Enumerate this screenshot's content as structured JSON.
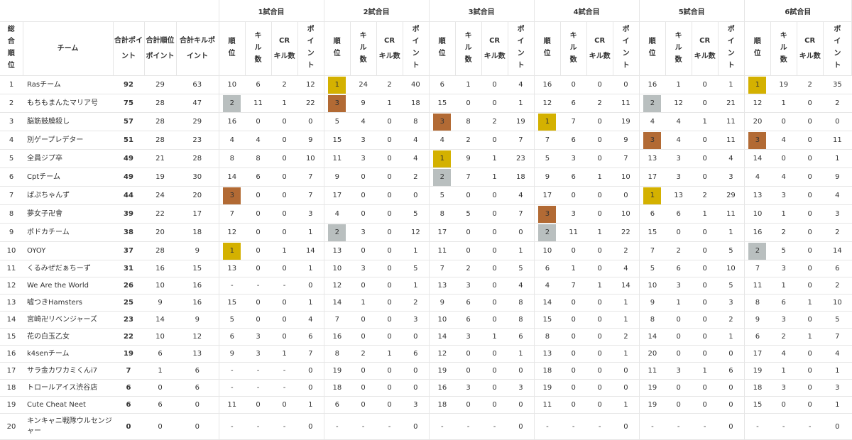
{
  "header": {
    "overall_rank": "総合順位",
    "team": "チーム",
    "total_points": "合計ポイント",
    "total_rank_points": "合計順位ポイント",
    "total_kill_points": "合計キルポイント",
    "game_labels": [
      "1試合目",
      "2試合目",
      "3試合目",
      "4試合目",
      "5試合目",
      "6試合目"
    ],
    "sub_rank": "順位",
    "sub_kills": "キル数",
    "sub_cr_prefix": "CR",
    "sub_cr_rest": "キル数",
    "sub_points": "ポイント"
  },
  "highlight_colors": {
    "1": "#d4b100",
    "2": "#b9bfbf",
    "3": "#b26a34"
  },
  "rows": [
    {
      "rank": "1",
      "team": "Rasチーム",
      "total": "92",
      "rankpts": "29",
      "killpts": "63",
      "games": [
        [
          "10",
          "6",
          "2",
          "12"
        ],
        [
          "1",
          "24",
          "2",
          "40"
        ],
        [
          "6",
          "1",
          "0",
          "4"
        ],
        [
          "16",
          "0",
          "0",
          "0"
        ],
        [
          "16",
          "1",
          "0",
          "1"
        ],
        [
          "1",
          "19",
          "2",
          "35"
        ]
      ]
    },
    {
      "rank": "2",
      "team": "もちもまんたマリア号",
      "total": "75",
      "rankpts": "28",
      "killpts": "47",
      "games": [
        [
          "2",
          "11",
          "1",
          "22"
        ],
        [
          "3",
          "9",
          "1",
          "18"
        ],
        [
          "15",
          "0",
          "0",
          "1"
        ],
        [
          "12",
          "6",
          "2",
          "11"
        ],
        [
          "2",
          "12",
          "0",
          "21"
        ],
        [
          "12",
          "1",
          "0",
          "2"
        ]
      ]
    },
    {
      "rank": "3",
      "team": "脳筋鼓膜殺し",
      "total": "57",
      "rankpts": "28",
      "killpts": "29",
      "games": [
        [
          "16",
          "0",
          "0",
          "0"
        ],
        [
          "5",
          "4",
          "0",
          "8"
        ],
        [
          "3",
          "8",
          "2",
          "19"
        ],
        [
          "1",
          "7",
          "0",
          "19"
        ],
        [
          "4",
          "4",
          "1",
          "11"
        ],
        [
          "20",
          "0",
          "0",
          "0"
        ]
      ]
    },
    {
      "rank": "4",
      "team": "別ゲープレデター",
      "total": "51",
      "rankpts": "28",
      "killpts": "23",
      "games": [
        [
          "4",
          "4",
          "0",
          "9"
        ],
        [
          "15",
          "3",
          "0",
          "4"
        ],
        [
          "4",
          "2",
          "0",
          "7"
        ],
        [
          "7",
          "6",
          "0",
          "9"
        ],
        [
          "3",
          "4",
          "0",
          "11"
        ],
        [
          "3",
          "4",
          "0",
          "11"
        ]
      ]
    },
    {
      "rank": "5",
      "team": "全員ジプ卒",
      "total": "49",
      "rankpts": "21",
      "killpts": "28",
      "games": [
        [
          "8",
          "8",
          "0",
          "10"
        ],
        [
          "11",
          "3",
          "0",
          "4"
        ],
        [
          "1",
          "9",
          "1",
          "23"
        ],
        [
          "5",
          "3",
          "0",
          "7"
        ],
        [
          "13",
          "3",
          "0",
          "4"
        ],
        [
          "14",
          "0",
          "0",
          "1"
        ]
      ]
    },
    {
      "rank": "6",
      "team": "Cptチーム",
      "total": "49",
      "rankpts": "19",
      "killpts": "30",
      "games": [
        [
          "14",
          "6",
          "0",
          "7"
        ],
        [
          "9",
          "0",
          "0",
          "2"
        ],
        [
          "2",
          "7",
          "1",
          "18"
        ],
        [
          "9",
          "6",
          "1",
          "10"
        ],
        [
          "17",
          "3",
          "0",
          "3"
        ],
        [
          "4",
          "4",
          "0",
          "9"
        ]
      ]
    },
    {
      "rank": "7",
      "team": "ぱぷちゃんず",
      "total": "44",
      "rankpts": "24",
      "killpts": "20",
      "games": [
        [
          "3",
          "0",
          "0",
          "7"
        ],
        [
          "17",
          "0",
          "0",
          "0"
        ],
        [
          "5",
          "0",
          "0",
          "4"
        ],
        [
          "17",
          "0",
          "0",
          "0"
        ],
        [
          "1",
          "13",
          "2",
          "29"
        ],
        [
          "13",
          "3",
          "0",
          "4"
        ]
      ]
    },
    {
      "rank": "8",
      "team": "夢女子卍會",
      "total": "39",
      "rankpts": "22",
      "killpts": "17",
      "games": [
        [
          "7",
          "0",
          "0",
          "3"
        ],
        [
          "4",
          "0",
          "0",
          "5"
        ],
        [
          "8",
          "5",
          "0",
          "7"
        ],
        [
          "3",
          "3",
          "0",
          "10"
        ],
        [
          "6",
          "6",
          "1",
          "11"
        ],
        [
          "10",
          "1",
          "0",
          "3"
        ]
      ]
    },
    {
      "rank": "9",
      "team": "ポドカチーム",
      "total": "38",
      "rankpts": "20",
      "killpts": "18",
      "games": [
        [
          "12",
          "0",
          "0",
          "1"
        ],
        [
          "2",
          "3",
          "0",
          "12"
        ],
        [
          "17",
          "0",
          "0",
          "0"
        ],
        [
          "2",
          "11",
          "1",
          "22"
        ],
        [
          "15",
          "0",
          "0",
          "1"
        ],
        [
          "16",
          "2",
          "0",
          "2"
        ]
      ]
    },
    {
      "rank": "10",
      "team": "OYOY",
      "total": "37",
      "rankpts": "28",
      "killpts": "9",
      "games": [
        [
          "1",
          "0",
          "1",
          "14"
        ],
        [
          "13",
          "0",
          "0",
          "1"
        ],
        [
          "11",
          "0",
          "0",
          "1"
        ],
        [
          "10",
          "0",
          "0",
          "2"
        ],
        [
          "7",
          "2",
          "0",
          "5"
        ],
        [
          "2",
          "5",
          "0",
          "14"
        ]
      ]
    },
    {
      "rank": "11",
      "team": "くるみぜだぁちーず",
      "total": "31",
      "rankpts": "16",
      "killpts": "15",
      "games": [
        [
          "13",
          "0",
          "0",
          "1"
        ],
        [
          "10",
          "3",
          "0",
          "5"
        ],
        [
          "7",
          "2",
          "0",
          "5"
        ],
        [
          "6",
          "1",
          "0",
          "4"
        ],
        [
          "5",
          "6",
          "0",
          "10"
        ],
        [
          "7",
          "3",
          "0",
          "6"
        ]
      ]
    },
    {
      "rank": "12",
      "team": "We Are the World",
      "total": "26",
      "rankpts": "10",
      "killpts": "16",
      "games": [
        [
          "-",
          "-",
          "-",
          "0"
        ],
        [
          "12",
          "0",
          "0",
          "1"
        ],
        [
          "13",
          "3",
          "0",
          "4"
        ],
        [
          "4",
          "7",
          "1",
          "14"
        ],
        [
          "10",
          "3",
          "0",
          "5"
        ],
        [
          "11",
          "1",
          "0",
          "2"
        ]
      ]
    },
    {
      "rank": "13",
      "team": "嘘つきHamsters",
      "total": "25",
      "rankpts": "9",
      "killpts": "16",
      "games": [
        [
          "15",
          "0",
          "0",
          "1"
        ],
        [
          "14",
          "1",
          "0",
          "2"
        ],
        [
          "9",
          "6",
          "0",
          "8"
        ],
        [
          "14",
          "0",
          "0",
          "1"
        ],
        [
          "9",
          "1",
          "0",
          "3"
        ],
        [
          "8",
          "6",
          "1",
          "10"
        ]
      ]
    },
    {
      "rank": "14",
      "team": "宮崎卍リベンジャーズ",
      "total": "23",
      "rankpts": "14",
      "killpts": "9",
      "games": [
        [
          "5",
          "0",
          "0",
          "4"
        ],
        [
          "7",
          "0",
          "0",
          "3"
        ],
        [
          "10",
          "6",
          "0",
          "8"
        ],
        [
          "15",
          "0",
          "0",
          "1"
        ],
        [
          "8",
          "0",
          "0",
          "2"
        ],
        [
          "9",
          "3",
          "0",
          "5"
        ]
      ]
    },
    {
      "rank": "15",
      "team": "花の白玉乙女",
      "total": "22",
      "rankpts": "10",
      "killpts": "12",
      "games": [
        [
          "6",
          "3",
          "0",
          "6"
        ],
        [
          "16",
          "0",
          "0",
          "0"
        ],
        [
          "14",
          "3",
          "1",
          "6"
        ],
        [
          "8",
          "0",
          "0",
          "2"
        ],
        [
          "14",
          "0",
          "0",
          "1"
        ],
        [
          "6",
          "2",
          "1",
          "7"
        ]
      ]
    },
    {
      "rank": "16",
      "team": "k4senチーム",
      "total": "19",
      "rankpts": "6",
      "killpts": "13",
      "games": [
        [
          "9",
          "3",
          "1",
          "7"
        ],
        [
          "8",
          "2",
          "1",
          "6"
        ],
        [
          "12",
          "0",
          "0",
          "1"
        ],
        [
          "13",
          "0",
          "0",
          "1"
        ],
        [
          "20",
          "0",
          "0",
          "0"
        ],
        [
          "17",
          "4",
          "0",
          "4"
        ]
      ]
    },
    {
      "rank": "17",
      "team": "サラ金カワカミくんi7",
      "total": "7",
      "rankpts": "1",
      "killpts": "6",
      "games": [
        [
          "-",
          "-",
          "-",
          "0"
        ],
        [
          "19",
          "0",
          "0",
          "0"
        ],
        [
          "19",
          "0",
          "0",
          "0"
        ],
        [
          "18",
          "0",
          "0",
          "0"
        ],
        [
          "11",
          "3",
          "1",
          "6"
        ],
        [
          "19",
          "1",
          "0",
          "1"
        ]
      ]
    },
    {
      "rank": "18",
      "team": "トロールアイス渋谷店",
      "total": "6",
      "rankpts": "0",
      "killpts": "6",
      "games": [
        [
          "-",
          "-",
          "-",
          "0"
        ],
        [
          "18",
          "0",
          "0",
          "0"
        ],
        [
          "16",
          "3",
          "0",
          "3"
        ],
        [
          "19",
          "0",
          "0",
          "0"
        ],
        [
          "19",
          "0",
          "0",
          "0"
        ],
        [
          "18",
          "3",
          "0",
          "3"
        ]
      ]
    },
    {
      "rank": "19",
      "team": "Cute Cheat Neet",
      "total": "6",
      "rankpts": "6",
      "killpts": "0",
      "games": [
        [
          "11",
          "0",
          "0",
          "1"
        ],
        [
          "6",
          "0",
          "0",
          "3"
        ],
        [
          "18",
          "0",
          "0",
          "0"
        ],
        [
          "11",
          "0",
          "0",
          "1"
        ],
        [
          "19",
          "0",
          "0",
          "0"
        ],
        [
          "15",
          "0",
          "0",
          "1"
        ]
      ]
    },
    {
      "rank": "20",
      "team": "キンキャニ戦隊ウルセンジャー",
      "total": "0",
      "rankpts": "0",
      "killpts": "0",
      "games": [
        [
          "-",
          "-",
          "-",
          "0"
        ],
        [
          "-",
          "-",
          "-",
          "0"
        ],
        [
          "-",
          "-",
          "-",
          "0"
        ],
        [
          "-",
          "-",
          "-",
          "0"
        ],
        [
          "-",
          "-",
          "-",
          "0"
        ],
        [
          "-",
          "-",
          "-",
          "0"
        ]
      ]
    }
  ]
}
